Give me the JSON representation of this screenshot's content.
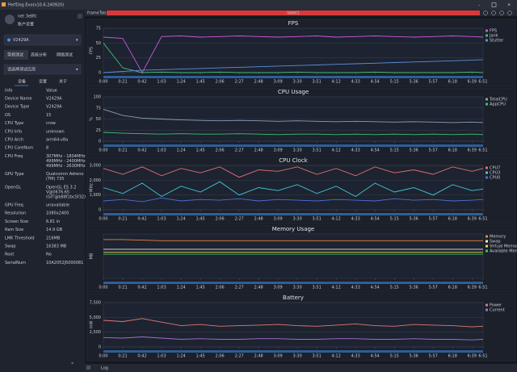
{
  "window": {
    "title": "PerfDog Evo(v10.6.240920)"
  },
  "sidebar": {
    "user": "net 3e8fc",
    "account": "账户设置",
    "device": "V2429A",
    "modes": [
      "常规测试",
      "高级分析",
      "网络测试"
    ],
    "app_select": "请选择测试应用",
    "tabs": [
      "设备",
      "设置",
      "关于"
    ],
    "info_header": [
      "Info",
      "Value"
    ],
    "info_rows": [
      [
        "Device Name",
        [
          "V2429A"
        ]
      ],
      [
        "Device Type",
        [
          "V2429A"
        ]
      ],
      [
        "OS",
        [
          "15"
        ]
      ],
      [
        "CPU Type",
        [
          "crow"
        ]
      ],
      [
        "CPU Info",
        [
          "unknown"
        ]
      ],
      [
        "CPU Arch",
        [
          "arm64-v8a"
        ]
      ],
      [
        "CPU CoreNum",
        [
          "8"
        ]
      ],
      [
        "CPU Freq",
        [
          "307MHz - 1804MHz",
          "499MHz - 2400MHz",
          "499MHz - 2630MHz"
        ]
      ],
      [
        "GPU Type",
        [
          "Qualcomm Adreno",
          "(TM) 735"
        ]
      ],
      [
        "OpenGL",
        [
          "OpenGL ES 3.2",
          "V@0676.65",
          "(GIT@b88f1bc5f32)"
        ]
      ],
      [
        "GPU Freq",
        [
          "unavailable"
        ]
      ],
      [
        "Resolution",
        [
          "1080x2400"
        ]
      ],
      [
        "Screen Size",
        [
          "6.81 in"
        ]
      ],
      [
        "Ram Size",
        [
          "14.9 GB"
        ]
      ],
      [
        "LMK Threshold",
        [
          "216MB"
        ]
      ],
      [
        "Swap",
        [
          "16383 MB"
        ]
      ],
      [
        "Root",
        [
          "No"
        ]
      ],
      [
        "SerialNum",
        [
          "10A2052J5000081"
        ]
      ]
    ]
  },
  "topbar": {
    "tab": "frameTab",
    "label": "label1"
  },
  "bottombar": {
    "log": "Log"
  },
  "chart_data": [
    {
      "type": "line",
      "title": "FPS",
      "ylabel": "FPS",
      "xlim": [
        0,
        411
      ],
      "ylim": [
        0,
        75
      ],
      "yticks": [
        0,
        25,
        50,
        75
      ],
      "xticks": [
        {
          "value": 0,
          "label": "0:00"
        },
        {
          "value": 21,
          "label": "0:21"
        },
        {
          "value": 42,
          "label": "0:42"
        },
        {
          "value": 63,
          "label": "1:03"
        },
        {
          "value": 84,
          "label": "1:24"
        },
        {
          "value": 105,
          "label": "1:45"
        },
        {
          "value": 126,
          "label": "2:06"
        },
        {
          "value": 147,
          "label": "2:27"
        },
        {
          "value": 168,
          "label": "2:48"
        },
        {
          "value": 189,
          "label": "3:09"
        },
        {
          "value": 210,
          "label": "3:30"
        },
        {
          "value": 231,
          "label": "3:51"
        },
        {
          "value": 252,
          "label": "4:12"
        },
        {
          "value": 273,
          "label": "4:33"
        },
        {
          "value": 294,
          "label": "4:54"
        },
        {
          "value": 315,
          "label": "5:15"
        },
        {
          "value": 336,
          "label": "5:36"
        },
        {
          "value": 357,
          "label": "5:57"
        },
        {
          "value": 378,
          "label": "6:18"
        },
        {
          "value": 399,
          "label": "6:39"
        },
        {
          "value": 411,
          "label": "6:51"
        }
      ],
      "x": [
        0,
        21,
        42,
        63,
        84,
        105,
        126,
        147,
        168,
        189,
        210,
        231,
        252,
        273,
        294,
        315,
        336,
        357,
        378,
        399,
        411
      ],
      "series": [
        {
          "name": "FPS",
          "color": "#c85ad8",
          "values": [
            60,
            58,
            0,
            61,
            62,
            60,
            61,
            62,
            61,
            60,
            61,
            62,
            60,
            61,
            62,
            61,
            60,
            61,
            62,
            61,
            60
          ]
        },
        {
          "name": "Jank",
          "color": "#3fbf6f",
          "values": [
            50,
            8,
            0,
            1,
            0,
            0,
            1,
            0,
            0,
            0,
            1,
            0,
            0,
            0,
            1,
            0,
            0,
            0,
            0,
            1,
            0
          ]
        },
        {
          "name": "Stutter",
          "color": "#5a8fd8",
          "values": [
            0,
            2,
            4,
            5,
            6,
            7,
            8,
            9,
            10,
            11,
            12,
            13,
            14,
            15,
            16,
            17,
            18,
            19,
            20,
            21,
            22
          ]
        }
      ]
    },
    {
      "type": "line",
      "title": "CPU Usage",
      "ylabel": "%",
      "xlim": [
        0,
        411
      ],
      "ylim": [
        0,
        100
      ],
      "yticks": [
        0,
        25,
        50,
        75,
        100
      ],
      "xticks": [
        {
          "value": 0,
          "label": "0:00"
        },
        {
          "value": 21,
          "label": "0:21"
        },
        {
          "value": 42,
          "label": "0:42"
        },
        {
          "value": 63,
          "label": "1:03"
        },
        {
          "value": 84,
          "label": "1:24"
        },
        {
          "value": 105,
          "label": "1:45"
        },
        {
          "value": 126,
          "label": "2:06"
        },
        {
          "value": 147,
          "label": "2:27"
        },
        {
          "value": 168,
          "label": "2:48"
        },
        {
          "value": 189,
          "label": "3:09"
        },
        {
          "value": 210,
          "label": "3:30"
        },
        {
          "value": 231,
          "label": "3:51"
        },
        {
          "value": 252,
          "label": "4:12"
        },
        {
          "value": 273,
          "label": "4:33"
        },
        {
          "value": 294,
          "label": "4:54"
        },
        {
          "value": 315,
          "label": "5:15"
        },
        {
          "value": 336,
          "label": "5:36"
        },
        {
          "value": 357,
          "label": "5:57"
        },
        {
          "value": 378,
          "label": "6:18"
        },
        {
          "value": 399,
          "label": "6:39"
        },
        {
          "value": 411,
          "label": "6:51"
        }
      ],
      "x": [
        0,
        21,
        42,
        63,
        84,
        105,
        126,
        147,
        168,
        189,
        210,
        231,
        252,
        273,
        294,
        315,
        336,
        357,
        378,
        399,
        411
      ],
      "series": [
        {
          "name": "TotalCPU",
          "color": "#8aa0b8",
          "values": [
            72,
            58,
            52,
            50,
            48,
            47,
            46,
            47,
            46,
            45,
            46,
            45,
            44,
            45,
            44,
            43,
            44,
            43,
            42,
            43,
            42
          ]
        },
        {
          "name": "AppCPU",
          "color": "#3fbf6f",
          "values": [
            20,
            18,
            17,
            16,
            17,
            16,
            16,
            17,
            16,
            15,
            16,
            16,
            15,
            16,
            15,
            16,
            15,
            16,
            15,
            16,
            15
          ]
        }
      ]
    },
    {
      "type": "line",
      "title": "CPU Clock",
      "ylabel": "MHz",
      "xlim": [
        0,
        411
      ],
      "ylim": [
        0,
        3000
      ],
      "yticks": [
        0,
        {
          "value": 1000,
          "label": "1,000"
        },
        {
          "value": 2000,
          "label": "2,000"
        },
        {
          "value": 3000,
          "label": "3,000"
        }
      ],
      "xticks": [
        {
          "value": 0,
          "label": "0:00"
        },
        {
          "value": 21,
          "label": "0:21"
        },
        {
          "value": 42,
          "label": "0:42"
        },
        {
          "value": 63,
          "label": "1:03"
        },
        {
          "value": 84,
          "label": "1:24"
        },
        {
          "value": 105,
          "label": "1:45"
        },
        {
          "value": 126,
          "label": "2:06"
        },
        {
          "value": 147,
          "label": "2:27"
        },
        {
          "value": 168,
          "label": "2:48"
        },
        {
          "value": 189,
          "label": "3:09"
        },
        {
          "value": 210,
          "label": "3:30"
        },
        {
          "value": 231,
          "label": "3:51"
        },
        {
          "value": 252,
          "label": "4:12"
        },
        {
          "value": 273,
          "label": "4:33"
        },
        {
          "value": 294,
          "label": "4:54"
        },
        {
          "value": 315,
          "label": "5:15"
        },
        {
          "value": 336,
          "label": "5:36"
        },
        {
          "value": 357,
          "label": "5:57"
        },
        {
          "value": 378,
          "label": "6:18"
        },
        {
          "value": 399,
          "label": "6:39"
        },
        {
          "value": 411,
          "label": "6:51"
        }
      ],
      "x": [
        0,
        21,
        42,
        63,
        84,
        105,
        126,
        147,
        168,
        189,
        210,
        231,
        252,
        273,
        294,
        315,
        336,
        357,
        378,
        399,
        411
      ],
      "series": [
        {
          "name": "CPU7",
          "color": "#e07070",
          "values": [
            2800,
            2400,
            2900,
            2300,
            2800,
            2500,
            2900,
            2200,
            2700,
            2600,
            2900,
            2400,
            2800,
            2300,
            2900,
            2500,
            2700,
            2400,
            2900,
            2600,
            2800
          ]
        },
        {
          "name": "CPU3",
          "color": "#3fc8d8",
          "values": [
            1500,
            1100,
            1800,
            900,
            1600,
            1200,
            1900,
            1000,
            1500,
            1300,
            1700,
            1100,
            1600,
            900,
            1800,
            1200,
            1500,
            1000,
            1700,
            1300,
            1400
          ]
        },
        {
          "name": "CPU0",
          "color": "#4a6fd8",
          "values": [
            600,
            700,
            550,
            800,
            600,
            700,
            650,
            750,
            600,
            700,
            650,
            600,
            700,
            650,
            600,
            750,
            650,
            700,
            600,
            650,
            700
          ]
        }
      ]
    },
    {
      "type": "line",
      "title": "Memory Usage",
      "ylabel": "MB",
      "xlim": [
        0,
        411
      ],
      "ylim": [
        0,
        16000
      ],
      "xticks": [
        {
          "value": 0,
          "label": "0:00"
        },
        {
          "value": 21,
          "label": "0:21"
        },
        {
          "value": 42,
          "label": "0:42"
        },
        {
          "value": 63,
          "label": "1:03"
        },
        {
          "value": 84,
          "label": "1:24"
        },
        {
          "value": 105,
          "label": "1:45"
        },
        {
          "value": 126,
          "label": "2:06"
        },
        {
          "value": 147,
          "label": "2:27"
        },
        {
          "value": 168,
          "label": "2:48"
        },
        {
          "value": 189,
          "label": "3:09"
        },
        {
          "value": 210,
          "label": "3:30"
        },
        {
          "value": 231,
          "label": "3:51"
        },
        {
          "value": 252,
          "label": "4:12"
        },
        {
          "value": 273,
          "label": "4:33"
        },
        {
          "value": 294,
          "label": "4:54"
        },
        {
          "value": 315,
          "label": "5:15"
        },
        {
          "value": 336,
          "label": "5:36"
        },
        {
          "value": 357,
          "label": "5:57"
        },
        {
          "value": 378,
          "label": "6:18"
        },
        {
          "value": 399,
          "label": "6:39"
        },
        {
          "value": 411,
          "label": "6:51"
        }
      ],
      "x": [
        0,
        21,
        42,
        63,
        84,
        105,
        126,
        147,
        168,
        189,
        210,
        231,
        252,
        273,
        294,
        315,
        336,
        357,
        378,
        399,
        411
      ],
      "series": [
        {
          "name": "Memory",
          "color": "#e8863a",
          "values": [
            14000,
            14000,
            13800,
            13600,
            13600,
            13600,
            13600,
            13600,
            13600,
            13600,
            13600,
            13600,
            13600,
            13600,
            13600,
            13600,
            13600,
            13600,
            13600,
            13600,
            13600
          ]
        },
        {
          "name": "Swap",
          "color": "#e8e8e8",
          "values": [
            10500,
            10500,
            10500,
            10500,
            10500,
            10500,
            10500,
            10500,
            10500,
            10500,
            10500,
            10500,
            10500,
            10500,
            10500,
            10500,
            10500,
            10500,
            10500,
            10500,
            10500
          ]
        },
        {
          "name": "Virtual Memory",
          "color": "#e8d84a",
          "values": [
            9400,
            9400,
            9400,
            9400,
            9400,
            9400,
            9400,
            9400,
            9400,
            9400,
            9400,
            9400,
            9400,
            9400,
            9400,
            9400,
            9400,
            9400,
            9400,
            9400,
            9400
          ]
        },
        {
          "name": "Available Memory",
          "color": "#3fbf6f",
          "values": [
            8700,
            8700,
            8700,
            8700,
            8700,
            8700,
            8700,
            8700,
            8700,
            8700,
            8700,
            8700,
            8700,
            8700,
            8700,
            8700,
            8700,
            8700,
            8700,
            8700,
            8700
          ]
        }
      ]
    },
    {
      "type": "line",
      "title": "Battery",
      "ylabel": "mW",
      "xlim": [
        0,
        411
      ],
      "ylim": [
        0,
        7500
      ],
      "yticks": [
        0,
        {
          "value": 2500,
          "label": "2,500"
        },
        {
          "value": 5000,
          "label": "5,000"
        },
        {
          "value": 7500,
          "label": "7,500"
        }
      ],
      "xticks": [
        {
          "value": 0,
          "label": "0:00"
        },
        {
          "value": 21,
          "label": "0:21"
        },
        {
          "value": 42,
          "label": "0:42"
        },
        {
          "value": 63,
          "label": "1:03"
        },
        {
          "value": 84,
          "label": "1:24"
        },
        {
          "value": 105,
          "label": "1:45"
        },
        {
          "value": 126,
          "label": "2:06"
        },
        {
          "value": 147,
          "label": "2:27"
        },
        {
          "value": 168,
          "label": "2:48"
        },
        {
          "value": 189,
          "label": "3:09"
        },
        {
          "value": 210,
          "label": "3:30"
        },
        {
          "value": 231,
          "label": "3:51"
        },
        {
          "value": 252,
          "label": "4:12"
        },
        {
          "value": 273,
          "label": "4:33"
        },
        {
          "value": 294,
          "label": "4:54"
        },
        {
          "value": 315,
          "label": "5:15"
        },
        {
          "value": 336,
          "label": "5:36"
        },
        {
          "value": 357,
          "label": "5:57"
        },
        {
          "value": 378,
          "label": "6:18"
        },
        {
          "value": 399,
          "label": "6:39"
        },
        {
          "value": 411,
          "label": "6:51"
        }
      ],
      "x": [
        0,
        21,
        42,
        63,
        84,
        105,
        126,
        147,
        168,
        189,
        210,
        231,
        252,
        273,
        294,
        315,
        336,
        357,
        378,
        399,
        411
      ],
      "series": [
        {
          "name": "Power",
          "color": "#e07a70",
          "values": [
            4500,
            4300,
            4800,
            4200,
            3600,
            3800,
            3500,
            3600,
            3700,
            3800,
            3600,
            3500,
            3700,
            3900,
            3600,
            3500,
            3800,
            3700,
            3600,
            3400,
            3500
          ]
        },
        {
          "name": "Current",
          "color": "#a070d0",
          "values": [
            1600,
            1500,
            1700,
            1500,
            1300,
            1400,
            1300,
            1300,
            1400,
            1400,
            1300,
            1300,
            1400,
            1400,
            1300,
            1300,
            1400,
            1300,
            1300,
            1200,
            1300
          ]
        }
      ]
    }
  ]
}
